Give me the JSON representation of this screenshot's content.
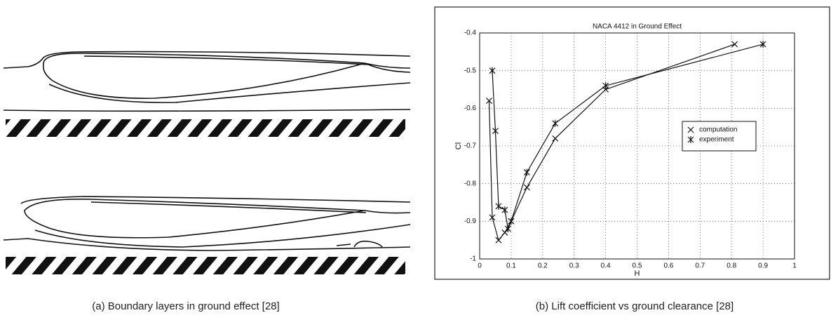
{
  "captions": [
    "(a)  Boundary layers in ground effect [28]",
    "(b)  Lift coefficient vs ground clearance [28]"
  ],
  "chart_data": {
    "type": "line",
    "title": "NACA 4412 in Ground Effect",
    "x_label": "H",
    "y_label": "Cl",
    "xlim": [
      0,
      1
    ],
    "xticks": [
      0,
      0.1,
      0.2,
      0.3,
      0.4,
      0.5,
      0.6,
      0.7,
      0.8,
      0.9,
      1
    ],
    "ylim": [
      -1,
      -0.4
    ],
    "yticks": [
      -1,
      -0.9,
      -0.8,
      -0.7,
      -0.6,
      -0.5,
      -0.4
    ],
    "grid": true,
    "legend": "center right",
    "series": [
      {
        "name": "computation",
        "color": "#111111",
        "marker": "x",
        "x": [
          0.03,
          0.04,
          0.06,
          0.08,
          0.1,
          0.15,
          0.24,
          0.4,
          0.81
        ],
        "values": [
          -0.58,
          -0.89,
          -0.95,
          -0.93,
          -0.9,
          -0.81,
          -0.68,
          -0.55,
          -0.43
        ]
      },
      {
        "name": "experiment",
        "color": "#111111",
        "marker": "*",
        "x": [
          0.04,
          0.05,
          0.06,
          0.08,
          0.09,
          0.1,
          0.15,
          0.24,
          0.4,
          0.9
        ],
        "values": [
          -0.5,
          -0.66,
          -0.86,
          -0.87,
          -0.92,
          -0.9,
          -0.77,
          -0.64,
          -0.54,
          -0.43
        ]
      }
    ]
  }
}
